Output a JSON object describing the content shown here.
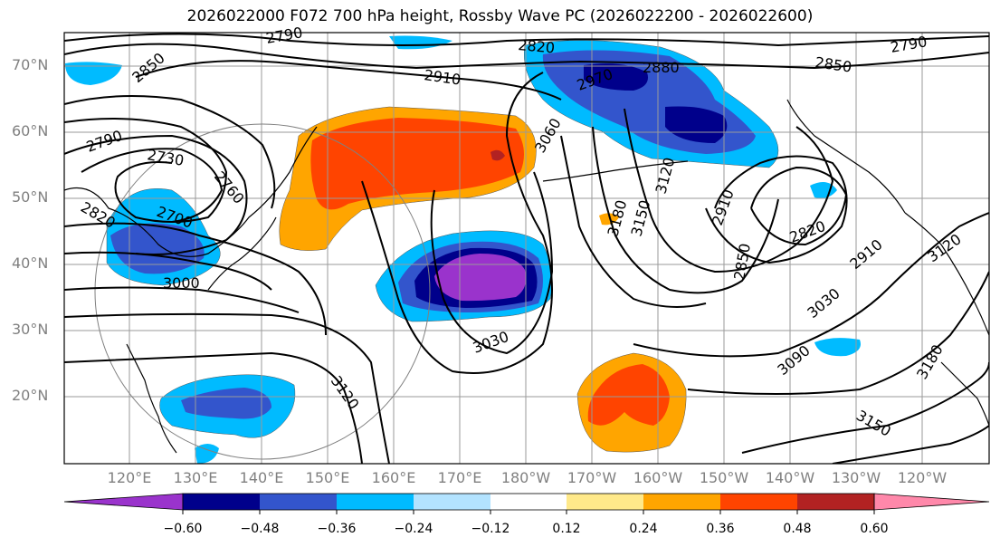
{
  "title": "2026022000 F072 700 hPa height, Rossby Wave PC (2026022200 - 2026022600)",
  "lat_labels": [
    "70°N",
    "60°N",
    "50°N",
    "40°N",
    "30°N",
    "20°N"
  ],
  "lon_labels": [
    "120°E",
    "130°E",
    "140°E",
    "150°E",
    "160°E",
    "170°E",
    "180°W",
    "170°W",
    "160°W",
    "150°W",
    "140°W",
    "130°W",
    "120°W"
  ],
  "contour_labels": [
    "2790",
    "2850",
    "2910",
    "2820",
    "2880",
    "2790",
    "2850",
    "2730",
    "2790",
    "2760",
    "2970",
    "3060",
    "2820",
    "2700",
    "3000",
    "3120",
    "3150",
    "3180",
    "2910",
    "2820",
    "2850",
    "2910",
    "3030",
    "3030",
    "3120",
    "3090",
    "3180",
    "3150",
    "3120"
  ],
  "colorbar": {
    "labels": [
      "−0.60",
      "−0.48",
      "−0.36",
      "−0.24",
      "−0.12",
      "0.12",
      "0.24",
      "0.36",
      "0.48",
      "0.60"
    ],
    "colors": [
      "#9a33cc",
      "#00008b",
      "#3355cc",
      "#00bbff",
      "#b3e3ff",
      "#ffffff",
      "#ffe98a",
      "#ffa500",
      "#ff4400",
      "#b22222",
      "#ff88aa"
    ]
  },
  "shade_colors": {
    "neg_light": "#00bbff",
    "neg_mid": "#3355cc",
    "neg_dark": "#00008b",
    "neg_core": "#9a33cc",
    "pos_light": "#ffa500",
    "pos_mid": "#ff4400",
    "pos_core": "#b22222"
  }
}
